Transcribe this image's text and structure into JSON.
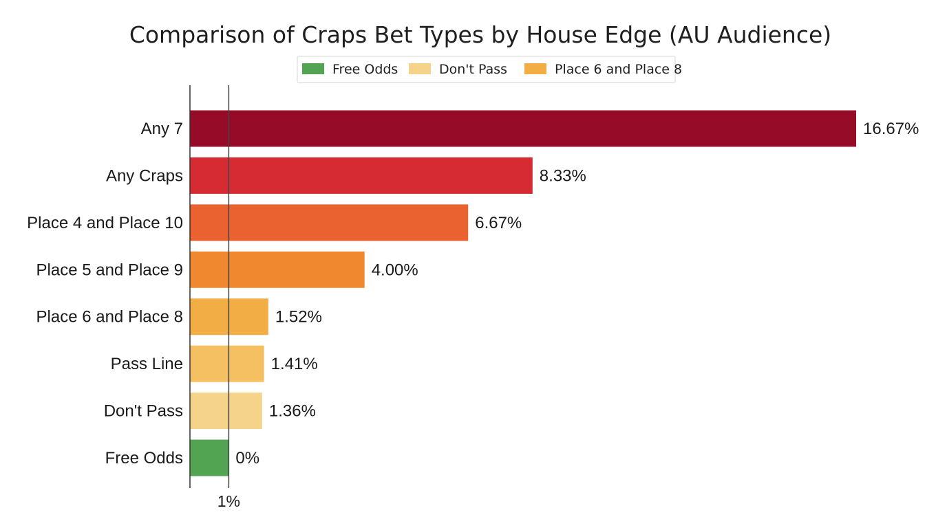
{
  "chart_data": {
    "type": "bar",
    "orientation": "horizontal",
    "title": "Comparison of Craps Bet Types by House Edge (AU Audience)",
    "xlabel": "",
    "ylabel": "",
    "categories": [
      "Any 7",
      "Any Craps",
      "Place 4 and Place 10",
      "Place 5 and Place 9",
      "Place 6 and Place 8",
      "Pass Line",
      "Don't Pass",
      "Free Odds"
    ],
    "values": [
      16.67,
      8.33,
      6.67,
      4.0,
      1.52,
      1.41,
      1.36,
      0
    ],
    "value_labels": [
      "16.67%",
      "8.33%",
      "6.67%",
      "4.00%",
      "1.52%",
      "1.41%",
      "1.36%",
      "0%"
    ],
    "colors": [
      "#960b28",
      "#d72b33",
      "#e9622f",
      "#f08830",
      "#f2ad44",
      "#f4c062",
      "#f5d38a",
      "#52a352"
    ],
    "xlim": [
      -0.5,
      16.67
    ],
    "reference_line": 0.5,
    "x_ticks": [
      0.5
    ],
    "x_tick_labels": [
      "1%"
    ],
    "grid": false,
    "legend": {
      "placement": "top-center",
      "items": [
        {
          "label": "Free Odds",
          "color": "#52a352"
        },
        {
          "label": "Don't Pass",
          "color": "#f5d38a"
        },
        {
          "label": "Place 6 and Place 8",
          "color": "#f2ad44"
        }
      ]
    }
  }
}
